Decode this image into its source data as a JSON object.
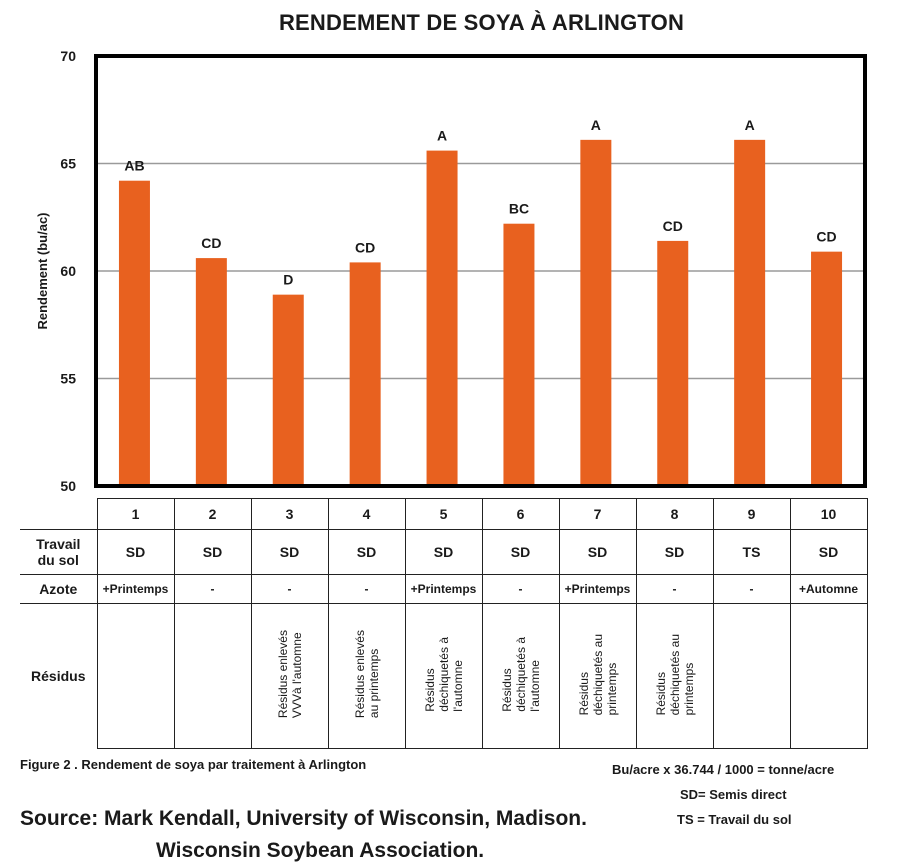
{
  "chart_data": {
    "type": "bar",
    "title": "RENDEMENT DE SOYA À ARLINGTON",
    "ylabel": "Rendement (bu/ac)",
    "xlabel": "",
    "ylim": [
      50,
      70
    ],
    "yticks": [
      "50",
      "55",
      "60",
      "65",
      "70"
    ],
    "grid": true,
    "bar_color": "#e8611f",
    "categories": [
      "1",
      "2",
      "3",
      "4",
      "5",
      "6",
      "7",
      "8",
      "9",
      "10"
    ],
    "values": [
      64.2,
      60.6,
      58.9,
      60.4,
      65.6,
      62.2,
      66.1,
      61.4,
      66.1,
      60.9
    ],
    "data_labels": [
      "AB",
      "CD",
      "D",
      "CD",
      "A",
      "BC",
      "A",
      "CD",
      "A",
      "CD"
    ]
  },
  "table": {
    "row_headers": {
      "travail": "Travail\ndu sol",
      "azote": "Azote",
      "residus": "Résidus"
    },
    "columns": [
      {
        "num": "1",
        "travail": "SD",
        "azote": "+Printemps",
        "residus": ""
      },
      {
        "num": "2",
        "travail": "SD",
        "azote": "-",
        "residus": ""
      },
      {
        "num": "3",
        "travail": "SD",
        "azote": "-",
        "residus": "Résidus enlevés\nVVVà l'automne"
      },
      {
        "num": "4",
        "travail": "SD",
        "azote": "-",
        "residus": "Résidus enlevés\nau printemps"
      },
      {
        "num": "5",
        "travail": "SD",
        "azote": "+Printemps",
        "residus": "Résidus\ndéchiquetés à\nl'automne"
      },
      {
        "num": "6",
        "travail": "SD",
        "azote": "-",
        "residus": "Résidus\ndéchiquetés à\nl'automne"
      },
      {
        "num": "7",
        "travail": "SD",
        "azote": "+Printemps",
        "residus": "Résidus\ndéchiquetés au\nprintemps"
      },
      {
        "num": "8",
        "travail": "SD",
        "azote": "-",
        "residus": "Résidus\ndéchiquetés au\nprintemps"
      },
      {
        "num": "9",
        "travail": "TS",
        "azote": "-",
        "residus": ""
      },
      {
        "num": "10",
        "travail": "SD",
        "azote": "+Automne",
        "residus": ""
      }
    ]
  },
  "caption": "Figure 2 . Rendement de soya par traitement à Arlington",
  "conversion": "Bu/acre x 36.744 / 1000 = tonne/acre",
  "legend_sd": "SD= Semis direct",
  "legend_ts": "TS = Travail du sol",
  "source_line1": "Source: Mark Kendall, University of Wisconsin, Madison.",
  "source_line2": "Wisconsin Soybean Association."
}
